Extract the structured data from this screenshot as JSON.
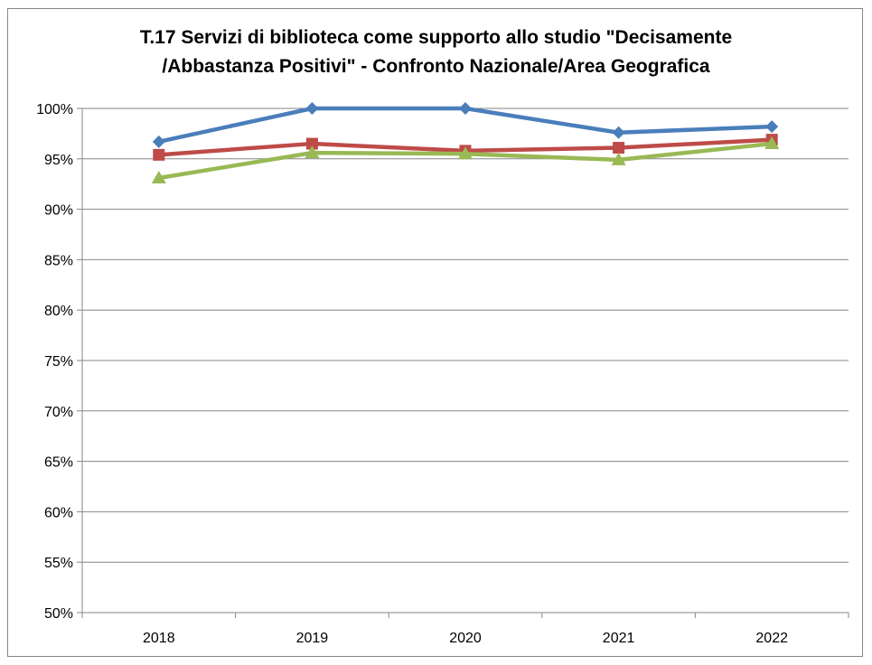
{
  "chart_data": {
    "type": "line",
    "title_lines": [
      "T.17 Servizi di biblioteca come supporto allo studio \"Decisamente",
      "/Abbastanza Positivi\" - Confronto Nazionale/Area Geografica"
    ],
    "categories": [
      "2018",
      "2019",
      "2020",
      "2021",
      "2022"
    ],
    "ylim": [
      50,
      100
    ],
    "yticks": [
      50,
      55,
      60,
      65,
      70,
      75,
      80,
      85,
      90,
      95,
      100
    ],
    "ytick_labels": [
      "50%",
      "55%",
      "60%",
      "65%",
      "70%",
      "75%",
      "80%",
      "85%",
      "90%",
      "95%",
      "100%"
    ],
    "grid": true,
    "legend": "none",
    "series": [
      {
        "color": "#4A7EBB",
        "marker": "diamond",
        "values": [
          96.7,
          100.0,
          100.0,
          97.6,
          98.2
        ]
      },
      {
        "color": "#BE4B48",
        "marker": "square",
        "values": [
          95.4,
          96.5,
          95.8,
          96.1,
          96.9
        ]
      },
      {
        "color": "#98B954",
        "marker": "triangle",
        "values": [
          93.1,
          95.6,
          95.5,
          94.9,
          96.5
        ]
      }
    ]
  }
}
